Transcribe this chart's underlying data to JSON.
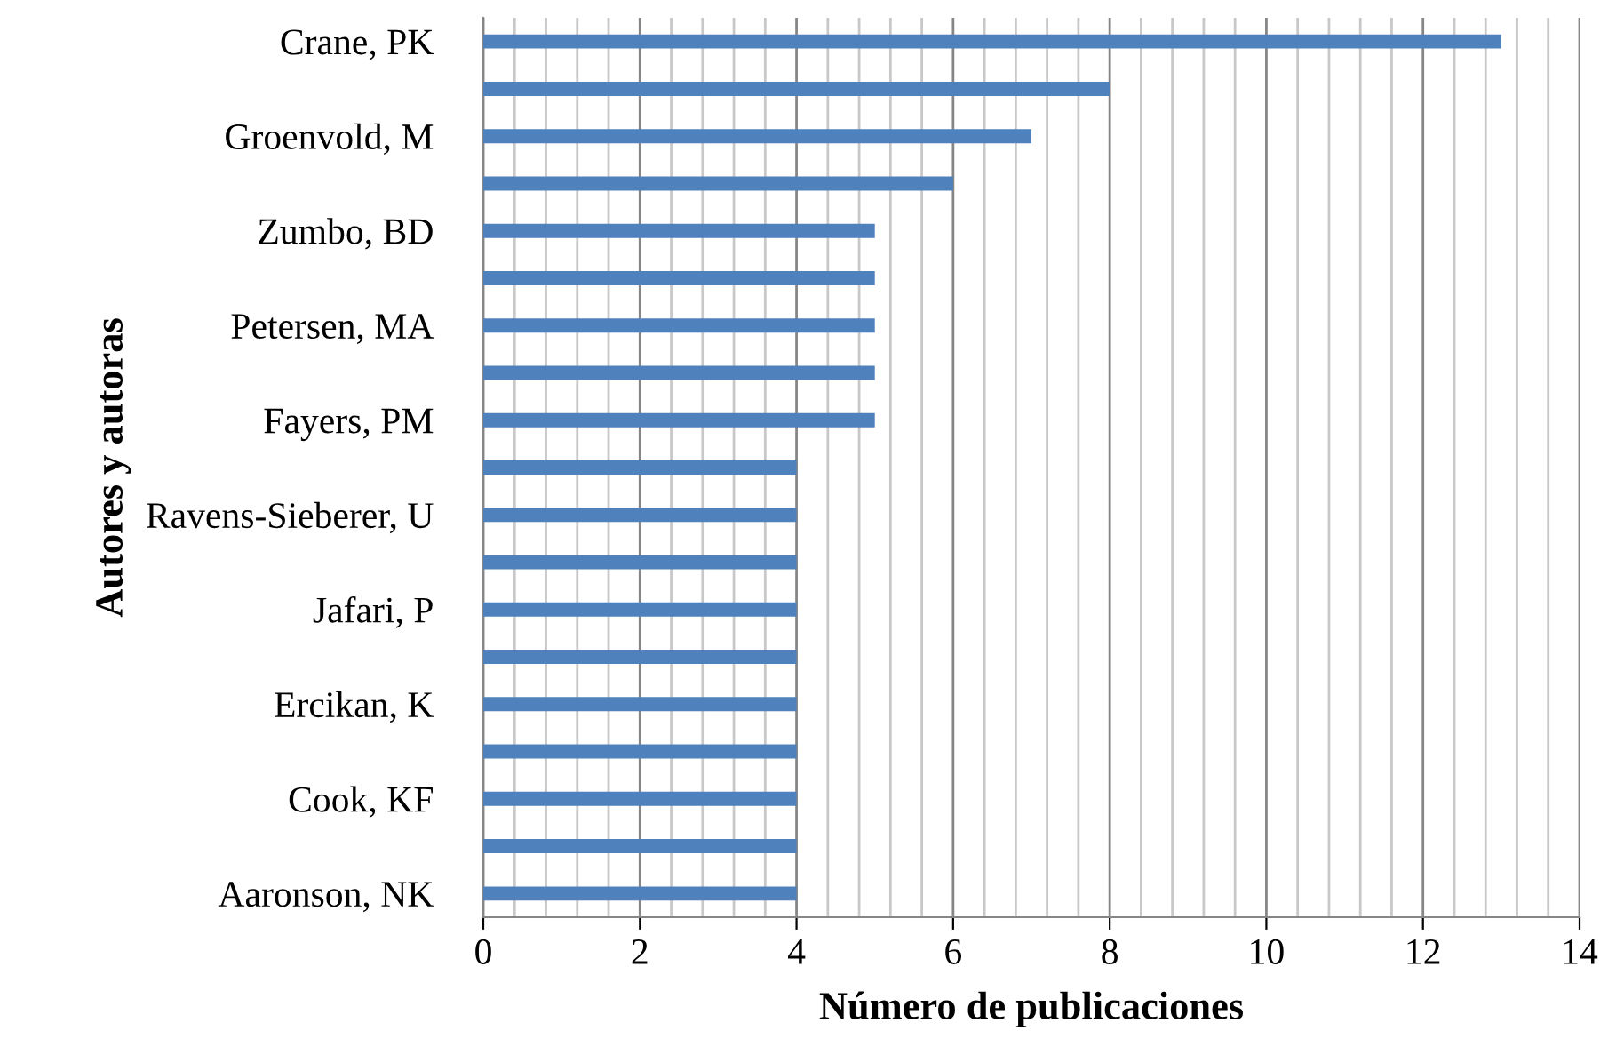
{
  "chart_data": {
    "type": "bar",
    "orientation": "horizontal",
    "xlabel": "Número de publicaciones",
    "ylabel": "Autores y autoras",
    "categories": [
      "Crane, PK",
      null,
      "Groenvold, M",
      null,
      "Zumbo, BD",
      null,
      "Petersen, MA",
      null,
      "Fayers, PM",
      null,
      "Ravens-Sieberer, U",
      null,
      "Jafari, P",
      null,
      "Ercikan, K",
      null,
      "Cook, KF",
      null,
      "Aaronson, NK"
    ],
    "values": [
      13,
      8,
      7,
      6,
      5,
      5,
      5,
      5,
      5,
      4,
      4,
      4,
      4,
      4,
      4,
      4,
      4,
      4,
      4
    ],
    "color": "#4f81bd",
    "xlim": [
      0,
      14
    ],
    "xticks": [
      0,
      {
        "value": 0.4,
        "label": null
      },
      {
        "value": 0.8,
        "label": null
      },
      {
        "value": 1.2,
        "label": null
      },
      {
        "value": 1.6,
        "label": null
      },
      2,
      {
        "value": 2.4,
        "label": null
      },
      {
        "value": 2.8,
        "label": null
      },
      {
        "value": 3.2,
        "label": null
      },
      {
        "value": 3.6,
        "label": null
      },
      4,
      {
        "value": 4.4,
        "label": null
      },
      {
        "value": 4.8,
        "label": null
      },
      {
        "value": 5.2,
        "label": null
      },
      {
        "value": 5.6,
        "label": null
      },
      6,
      {
        "value": 6.4,
        "label": null
      },
      {
        "value": 6.8,
        "label": null
      },
      {
        "value": 7.2,
        "label": null
      },
      {
        "value": 7.6,
        "label": null
      },
      8,
      {
        "value": 8.4,
        "label": null
      },
      {
        "value": 8.8,
        "label": null
      },
      {
        "value": 9.2,
        "label": null
      },
      {
        "value": 9.6,
        "label": null
      },
      10,
      {
        "value": 10.4,
        "label": null
      },
      {
        "value": 10.8,
        "label": null
      },
      {
        "value": 11.2,
        "label": null
      },
      {
        "value": 11.6,
        "label": null
      },
      12,
      {
        "value": 12.4,
        "label": null
      },
      {
        "value": 12.8,
        "label": null
      },
      {
        "value": 13.2,
        "label": null
      },
      {
        "value": 13.6,
        "label": null
      },
      14
    ],
    "grid": "x"
  }
}
